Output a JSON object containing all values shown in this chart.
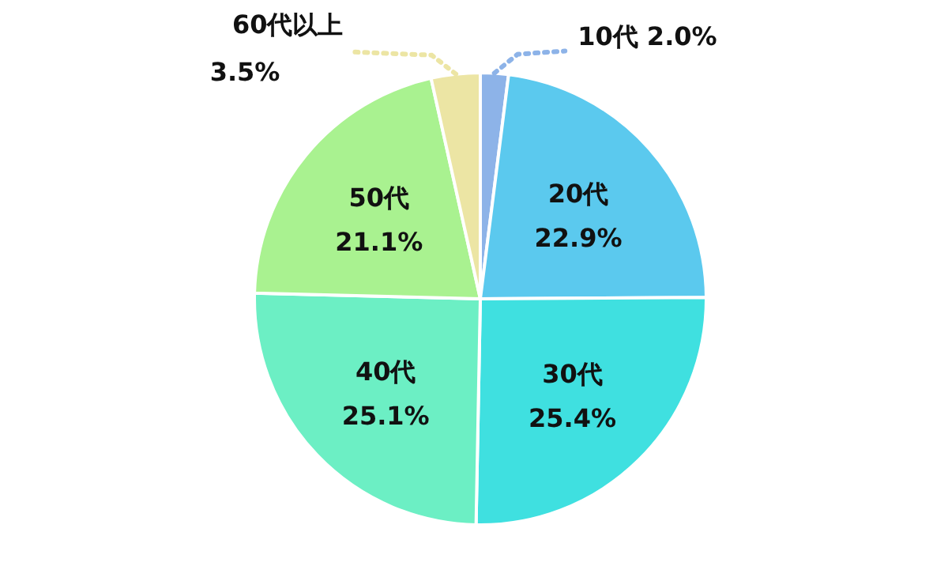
{
  "chart_data": {
    "type": "pie",
    "categories": [
      "10代",
      "20代",
      "30代",
      "40代",
      "50代",
      "60代以上"
    ],
    "values": [
      2.0,
      22.9,
      25.4,
      25.1,
      21.1,
      3.5
    ],
    "value_labels": [
      "2.0%",
      "22.9%",
      "25.4%",
      "25.1%",
      "21.1%",
      "3.5%"
    ],
    "colors": [
      "#8db3e8",
      "#5bc9ee",
      "#3fe0e0",
      "#6cefc4",
      "#a9f290",
      "#ece5a4"
    ],
    "legend": false
  }
}
